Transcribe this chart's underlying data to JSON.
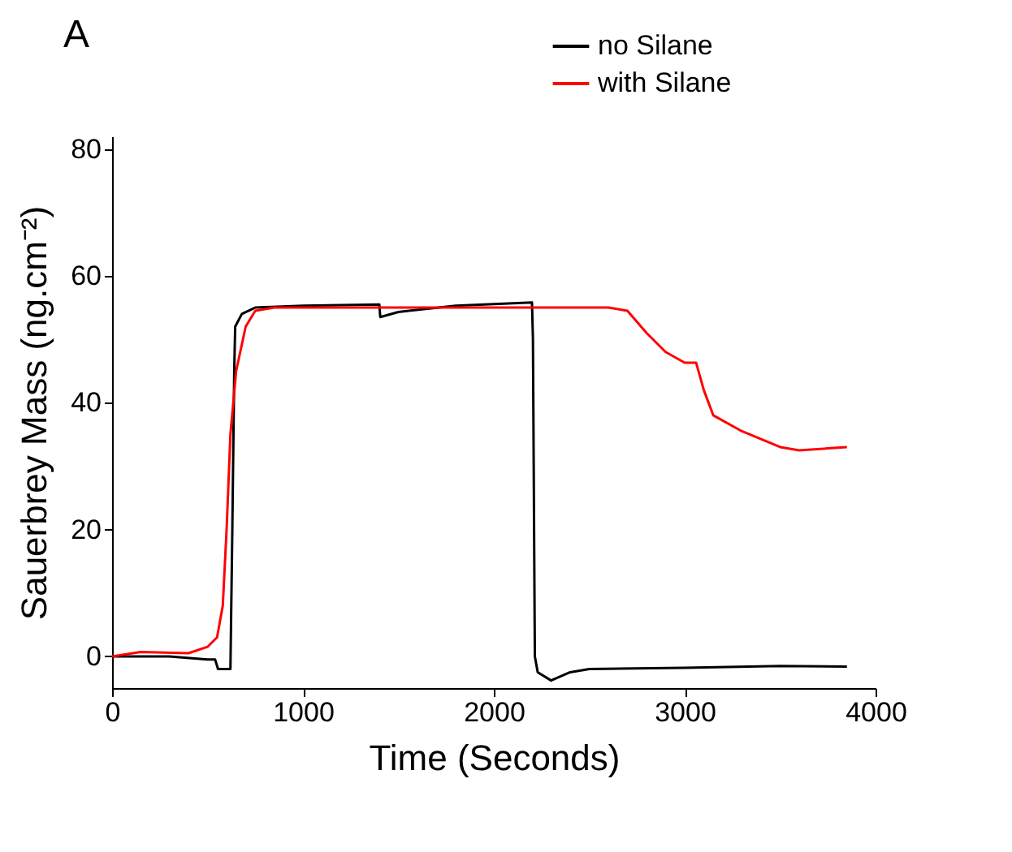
{
  "chart_data": {
    "type": "line",
    "xlabel": "Time (Seconds)",
    "ylabel": "Sauerbrey Mass (ng.cm⁻²)",
    "annotations": [
      "A"
    ],
    "xlim": [
      0,
      4000
    ],
    "xticks": [
      0,
      1000,
      2000,
      3000,
      4000
    ],
    "ylim": [
      -5,
      82
    ],
    "yticks": [
      0,
      20,
      40,
      60,
      80
    ],
    "grid": false,
    "legend": "top right",
    "series": [
      {
        "name": "no Silane",
        "color": "#000000",
        "x": [
          0,
          300,
          500,
          540,
          555,
          620,
          630,
          640,
          645,
          680,
          750,
          1000,
          1400,
          1405,
          1500,
          1800,
          2200,
          2205,
          2215,
          2230,
          2300,
          2400,
          2500,
          3000,
          3500,
          3850
        ],
        "values": [
          0,
          0,
          -0.5,
          -0.5,
          -2,
          -2,
          20,
          45,
          52,
          54,
          55,
          55.3,
          55.5,
          53.5,
          54.3,
          55.3,
          55.8,
          50,
          0,
          -2.5,
          -3.8,
          -2.5,
          -2,
          -1.8,
          -1.5,
          -1.6
        ]
      },
      {
        "name": "with Silane",
        "color": "#ff0000",
        "x": [
          0,
          150,
          400,
          500,
          550,
          580,
          600,
          620,
          650,
          700,
          750,
          850,
          2600,
          2700,
          2800,
          2900,
          3000,
          3060,
          3100,
          3150,
          3300,
          3500,
          3600,
          3750,
          3850
        ],
        "values": [
          0,
          0.7,
          0.5,
          1.5,
          3,
          8,
          20,
          35,
          45,
          52,
          54.5,
          55,
          55,
          54.5,
          51,
          48,
          46.3,
          46.3,
          42,
          38,
          35.5,
          33,
          32.5,
          32.8,
          33
        ]
      }
    ]
  }
}
